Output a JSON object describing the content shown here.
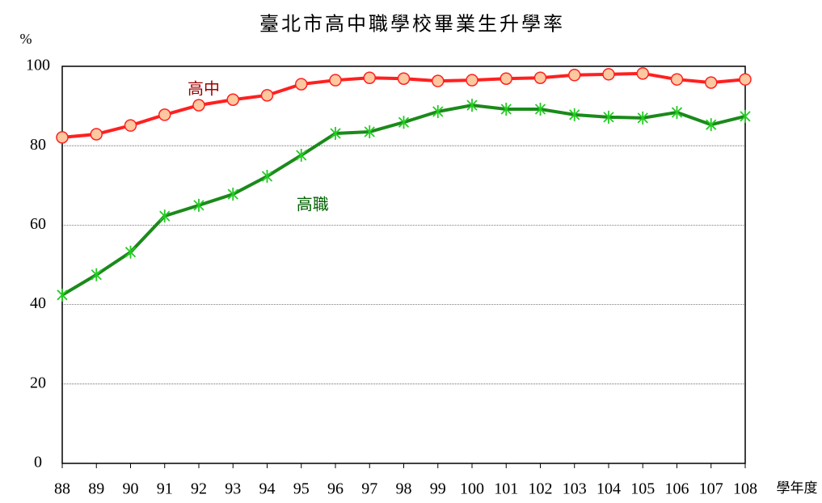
{
  "chart_data": {
    "type": "line",
    "title": "臺北市高中職學校畢業生升學率",
    "y_label": "%",
    "x_label": "學年度",
    "categories": [
      "88",
      "89",
      "90",
      "91",
      "92",
      "93",
      "94",
      "95",
      "96",
      "97",
      "98",
      "99",
      "100",
      "101",
      "102",
      "103",
      "104",
      "105",
      "106",
      "107",
      "108"
    ],
    "series": [
      {
        "name": "高中",
        "color": "#ff2020",
        "marker_fill": "#fcc8a0",
        "marker": "circle",
        "values": [
          82.1,
          82.9,
          85.1,
          87.8,
          90.2,
          91.6,
          92.7,
          95.5,
          96.5,
          97.1,
          96.9,
          96.3,
          96.5,
          96.9,
          97.1,
          97.8,
          98.0,
          98.2,
          96.7,
          95.9,
          96.7
        ]
      },
      {
        "name": "高職",
        "color": "#1a8a1a",
        "marker": "asterisk",
        "values": [
          42.4,
          47.5,
          53.2,
          62.3,
          65.0,
          67.8,
          72.3,
          77.6,
          83.1,
          83.5,
          85.9,
          88.6,
          90.2,
          89.2,
          89.2,
          87.8,
          87.2,
          87.0,
          88.4,
          85.3,
          87.4
        ]
      }
    ],
    "ylim": [
      0,
      100
    ],
    "yticks": [
      0,
      20,
      40,
      60,
      80,
      100
    ],
    "grid": true
  }
}
